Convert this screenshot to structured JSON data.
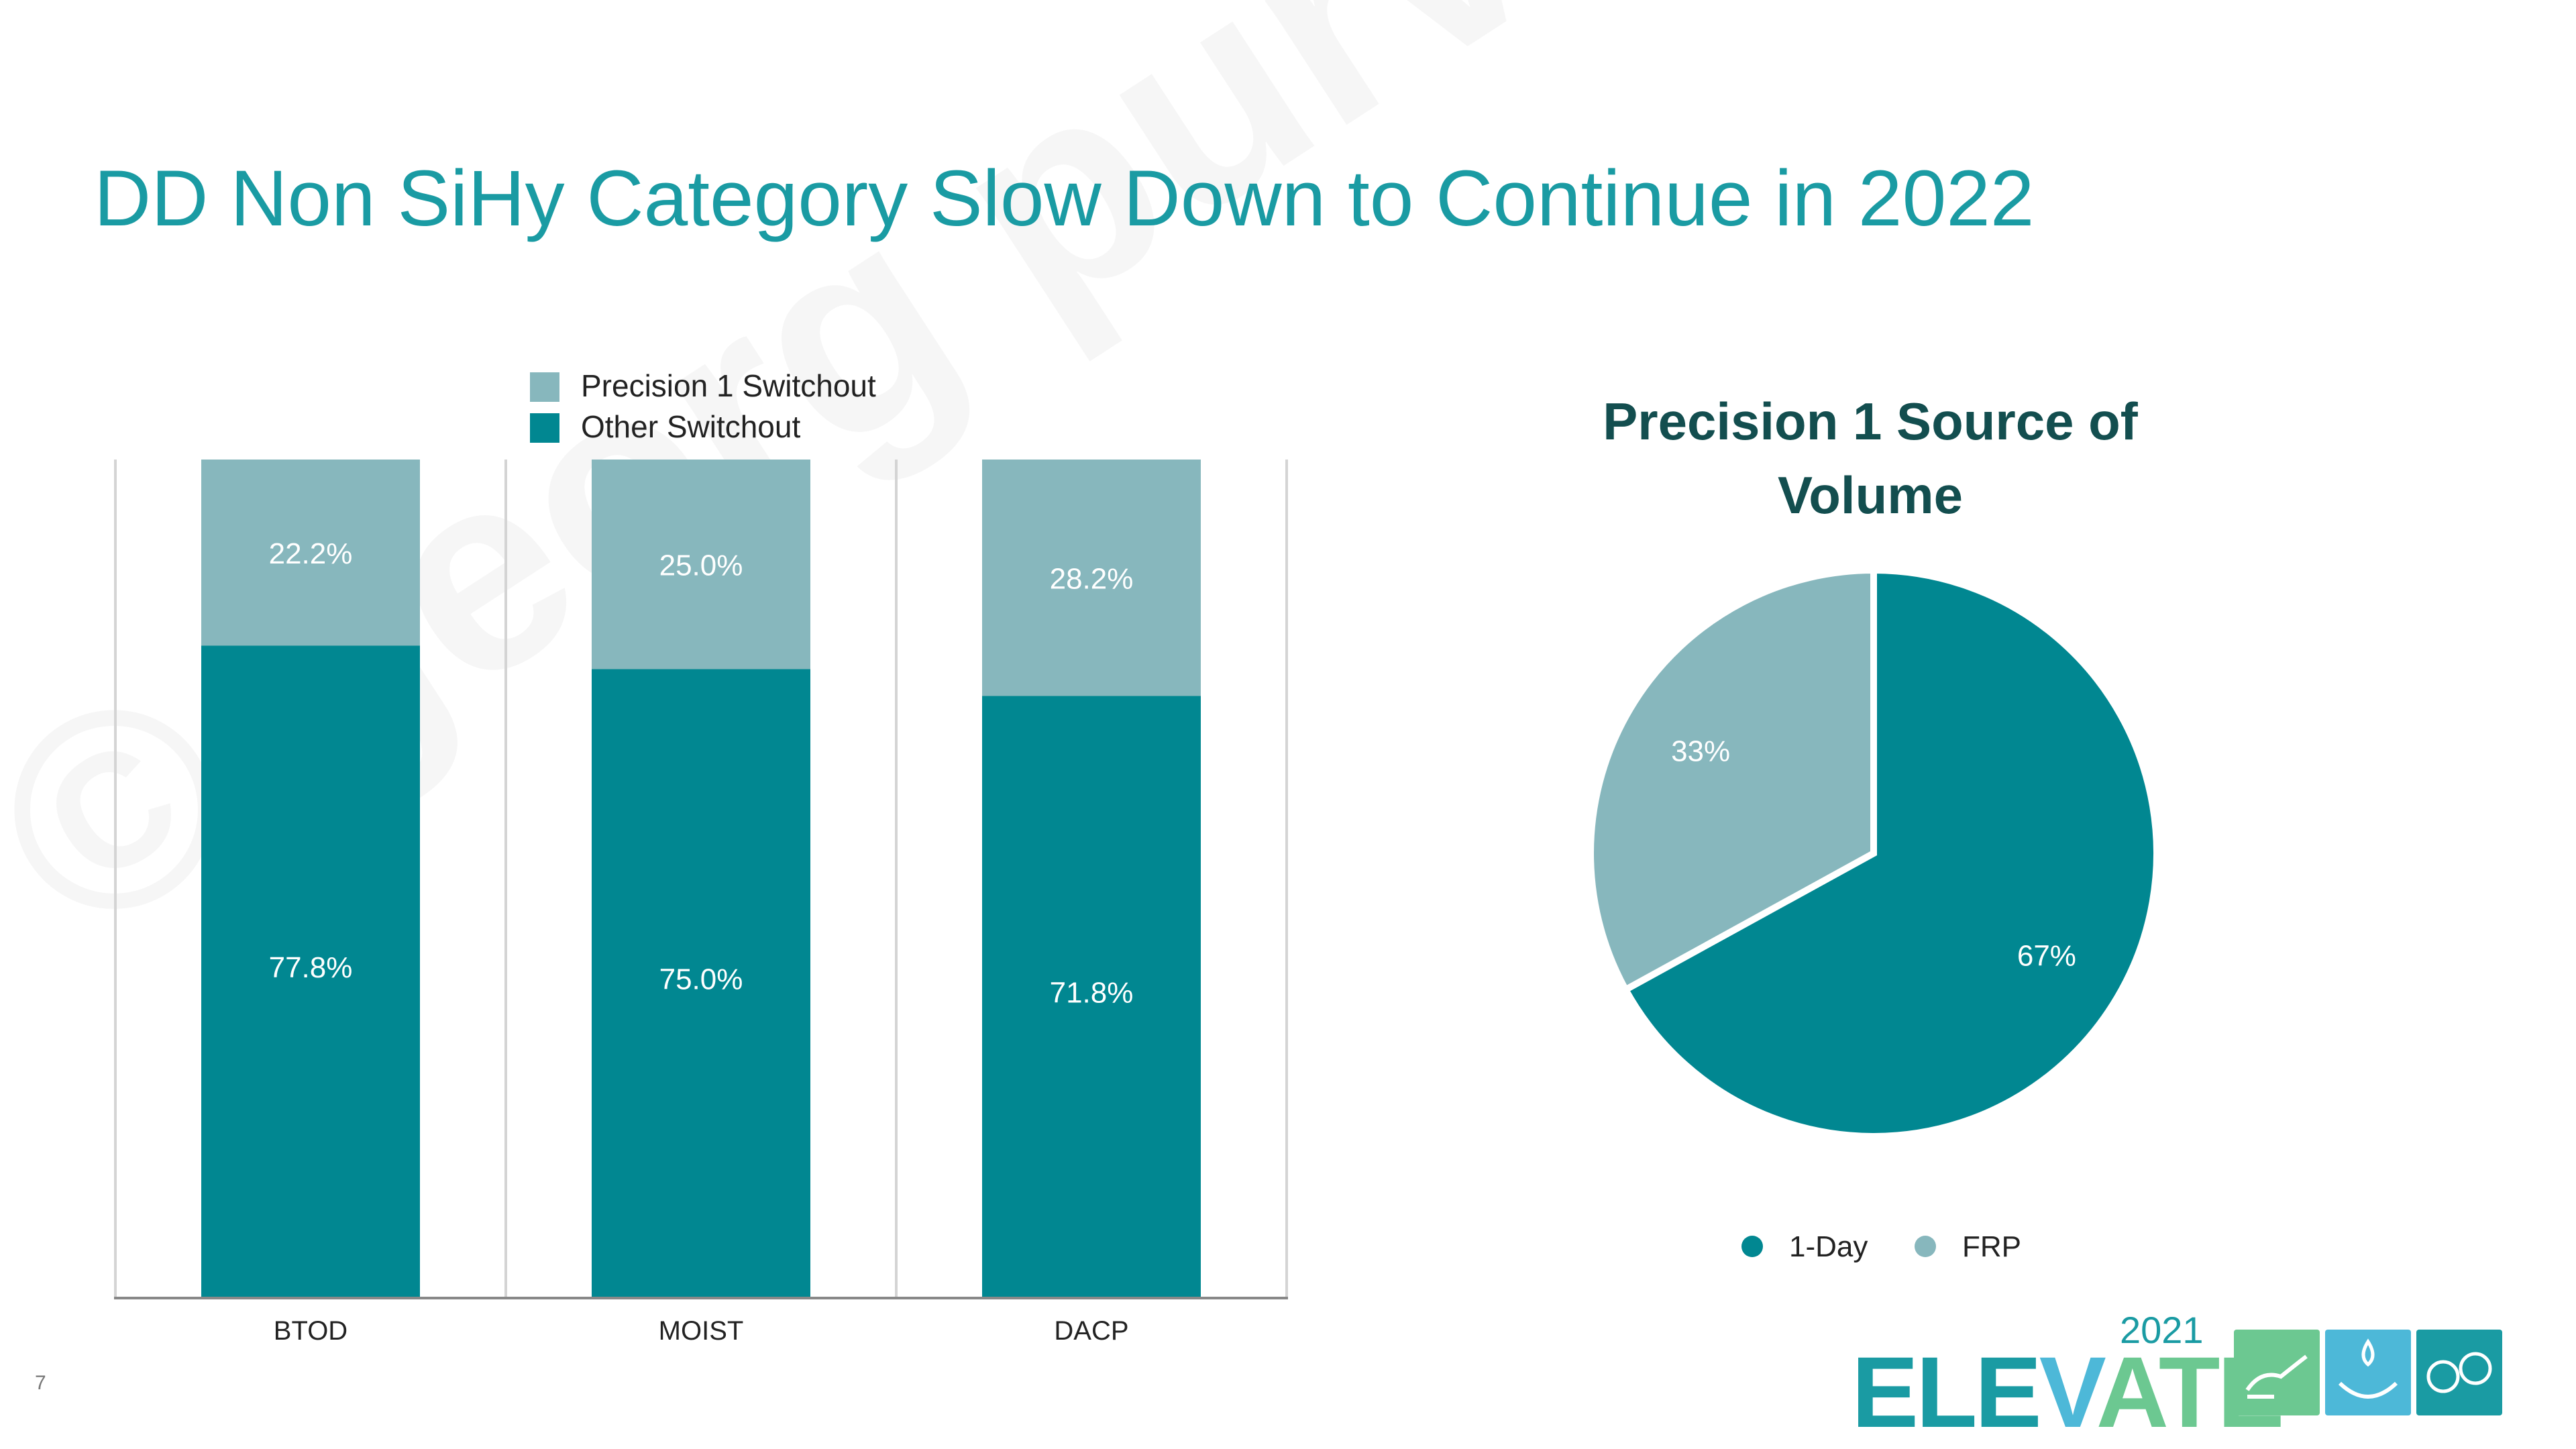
{
  "page": {
    "title": "DD Non SiHy Category Slow Down to Continue in 2022",
    "page_number": "7",
    "watermark": "© georg purvis",
    "logo": {
      "year": "2021",
      "word_part1": "ELE",
      "word_part2": "V",
      "word_part3": "ATE"
    }
  },
  "colors": {
    "title": "#1a9ba3",
    "other_switchout": "#018791",
    "precision_switchout": "#87b7bd",
    "pie_title": "#134e4f"
  },
  "chart_data": [
    {
      "type": "bar",
      "stacked": true,
      "categories": [
        "BTOD",
        "MOIST",
        "DACP"
      ],
      "series": [
        {
          "name": "Other Switchout",
          "values": [
            77.8,
            75.0,
            71.8
          ],
          "labels": [
            "77.8%",
            "75.0%",
            "71.8%"
          ],
          "color": "#018791"
        },
        {
          "name": "Precision 1 Switchout",
          "values": [
            22.2,
            25.0,
            28.2
          ],
          "labels": [
            "22.2%",
            "25.0%",
            "28.2%"
          ],
          "color": "#87b7bd"
        }
      ],
      "ylim": [
        0,
        100
      ],
      "grid": "vertical",
      "legend": "top-center"
    },
    {
      "type": "pie",
      "title": "Precision 1 Source of Volume",
      "title_lines": [
        "Precision 1 Source of",
        "Volume"
      ],
      "slices": [
        {
          "name": "1-Day",
          "value": 67,
          "label": "67%",
          "color": "#018791"
        },
        {
          "name": "FRP",
          "value": 33,
          "label": "33%",
          "color": "#87b7bd"
        }
      ],
      "legend": "bottom"
    }
  ]
}
